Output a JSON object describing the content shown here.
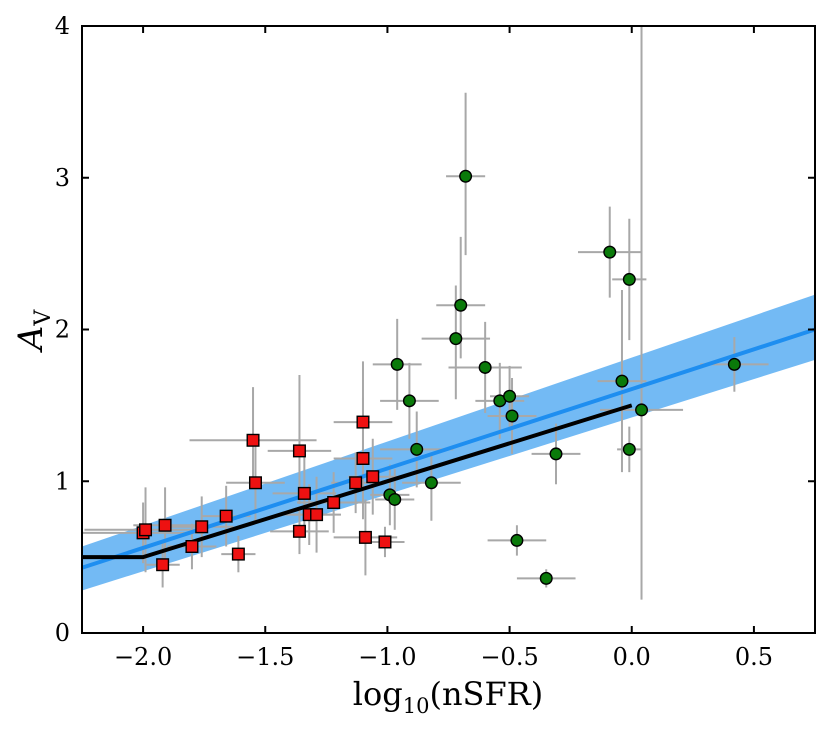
{
  "chart_data": {
    "type": "scatter",
    "title": "",
    "xlabel": "log10(nSFR)",
    "xlabel_main": "log",
    "xlabel_sub": "10",
    "xlabel_rest": "(nSFR)",
    "ylabel_main": "A",
    "ylabel_sub": "V",
    "xlim": [
      -2.25,
      0.75
    ],
    "ylim": [
      0,
      4
    ],
    "xticks": [
      -2.0,
      -1.5,
      -1.0,
      -0.5,
      0.0,
      0.5
    ],
    "xtick_labels": [
      "−2.0",
      "−1.5",
      "−1.0",
      "−0.5",
      "0.0",
      "0.5"
    ],
    "yticks": [
      0,
      1,
      2,
      3,
      4
    ],
    "ytick_labels": [
      "0",
      "1",
      "2",
      "3",
      "4"
    ],
    "grid": false,
    "colors": {
      "green_points": "#0a7a0a",
      "red_points": "#ee1111",
      "error_bars": "#a8a8a8",
      "fit_line": "#1e8ef0",
      "fit_band": "#5aaef2",
      "model_line": "#000000"
    },
    "series": [
      {
        "name": "green",
        "marker": "circle",
        "points": [
          {
            "x": -0.68,
            "y": 3.01,
            "xerr": 0.08,
            "yerr_lo": 0.52,
            "yerr_hi": 0.55
          },
          {
            "x": -0.7,
            "y": 2.16,
            "xerr": 0.1,
            "yerr_lo": 0.35,
            "yerr_hi": 0.45
          },
          {
            "x": -0.72,
            "y": 1.94,
            "xerr": 0.14,
            "yerr_lo": 0.4,
            "yerr_hi": 0.35
          },
          {
            "x": -0.96,
            "y": 1.77,
            "xerr": 0.1,
            "yerr_lo": 0.3,
            "yerr_hi": 0.3
          },
          {
            "x": -0.6,
            "y": 1.75,
            "xerr": 0.15,
            "yerr_lo": 0.3,
            "yerr_hi": 0.3
          },
          {
            "x": -0.91,
            "y": 1.53,
            "xerr": 0.12,
            "yerr_lo": 0.25,
            "yerr_hi": 0.25
          },
          {
            "x": -0.54,
            "y": 1.53,
            "xerr": 0.1,
            "yerr_lo": 0.25,
            "yerr_hi": 0.25
          },
          {
            "x": -0.5,
            "y": 1.56,
            "xerr": 0.08,
            "yerr_lo": 0.2,
            "yerr_hi": 0.2
          },
          {
            "x": -0.49,
            "y": 1.43,
            "xerr": 0.1,
            "yerr_lo": 0.25,
            "yerr_hi": 0.25
          },
          {
            "x": -0.88,
            "y": 1.21,
            "xerr": 0.15,
            "yerr_lo": 0.25,
            "yerr_hi": 0.25
          },
          {
            "x": -0.82,
            "y": 0.99,
            "xerr": 0.12,
            "yerr_lo": 0.25,
            "yerr_hi": 0.2
          },
          {
            "x": -0.99,
            "y": 0.91,
            "xerr": 0.08,
            "yerr_lo": 0.2,
            "yerr_hi": 0.2
          },
          {
            "x": -0.97,
            "y": 0.88,
            "xerr": 0.08,
            "yerr_lo": 0.2,
            "yerr_hi": 0.2
          },
          {
            "x": -0.31,
            "y": 1.18,
            "xerr": 0.1,
            "yerr_lo": 0.2,
            "yerr_hi": 0.2
          },
          {
            "x": -0.47,
            "y": 0.61,
            "xerr": 0.12,
            "yerr_lo": 0.1,
            "yerr_hi": 0.1
          },
          {
            "x": -0.35,
            "y": 0.36,
            "xerr": 0.12,
            "yerr_lo": 0.06,
            "yerr_hi": 0.06
          },
          {
            "x": -0.09,
            "y": 2.51,
            "xerr": 0.13,
            "yerr_lo": 0.3,
            "yerr_hi": 0.3
          },
          {
            "x": -0.01,
            "y": 2.33,
            "xerr": 0.07,
            "yerr_lo": 0.4,
            "yerr_hi": 0.4
          },
          {
            "x": -0.04,
            "y": 1.66,
            "xerr": 0.1,
            "yerr_lo": 0.6,
            "yerr_hi": 0.6
          },
          {
            "x": -0.01,
            "y": 1.21,
            "xerr": 0.05,
            "yerr_lo": 0.15,
            "yerr_hi": 0.15
          },
          {
            "x": 0.04,
            "y": 1.47,
            "xerr": 0.17,
            "yerr_lo": 1.25,
            "yerr_hi": 3.6
          },
          {
            "x": 0.42,
            "y": 1.77,
            "xerr": 0.14,
            "yerr_lo": 0.18,
            "yerr_hi": 0.18
          }
        ]
      },
      {
        "name": "red",
        "marker": "square",
        "points": [
          {
            "x": -2.0,
            "y": 0.66,
            "xerr": 0.25,
            "yerr_lo": 0.2,
            "yerr_hi": 0.2
          },
          {
            "x": -1.99,
            "y": 0.68,
            "xerr": 0.25,
            "yerr_lo": 0.28,
            "yerr_hi": 0.28
          },
          {
            "x": -1.91,
            "y": 0.71,
            "xerr": 0.13,
            "yerr_lo": 0.25,
            "yerr_hi": 0.25
          },
          {
            "x": -1.92,
            "y": 0.45,
            "xerr": 0.07,
            "yerr_lo": 0.15,
            "yerr_hi": 0.15
          },
          {
            "x": -1.76,
            "y": 0.7,
            "xerr": 0.13,
            "yerr_lo": 0.2,
            "yerr_hi": 0.2
          },
          {
            "x": -1.8,
            "y": 0.57,
            "xerr": 0.1,
            "yerr_lo": 0.15,
            "yerr_hi": 0.15
          },
          {
            "x": -1.66,
            "y": 0.77,
            "xerr": 0.1,
            "yerr_lo": 0.2,
            "yerr_hi": 0.2
          },
          {
            "x": -1.61,
            "y": 0.52,
            "xerr": 0.07,
            "yerr_lo": 0.12,
            "yerr_hi": 0.12
          },
          {
            "x": -1.55,
            "y": 1.27,
            "xerr": 0.26,
            "yerr_lo": 0.3,
            "yerr_hi": 0.35
          },
          {
            "x": -1.54,
            "y": 0.99,
            "xerr": 0.12,
            "yerr_lo": 0.25,
            "yerr_hi": 0.25
          },
          {
            "x": -1.36,
            "y": 1.2,
            "xerr": 0.13,
            "yerr_lo": 0.35,
            "yerr_hi": 0.5
          },
          {
            "x": -1.34,
            "y": 0.92,
            "xerr": 0.13,
            "yerr_lo": 0.25,
            "yerr_hi": 0.25
          },
          {
            "x": -1.32,
            "y": 0.78,
            "xerr": 0.1,
            "yerr_lo": 0.2,
            "yerr_hi": 0.2
          },
          {
            "x": -1.29,
            "y": 0.78,
            "xerr": 0.1,
            "yerr_lo": 0.25,
            "yerr_hi": 0.25
          },
          {
            "x": -1.36,
            "y": 0.67,
            "xerr": 0.12,
            "yerr_lo": 0.15,
            "yerr_hi": 0.15
          },
          {
            "x": -1.22,
            "y": 0.86,
            "xerr": 0.15,
            "yerr_lo": 0.2,
            "yerr_hi": 0.2
          },
          {
            "x": -1.13,
            "y": 0.99,
            "xerr": 0.1,
            "yerr_lo": 0.2,
            "yerr_hi": 0.2
          },
          {
            "x": -1.06,
            "y": 1.03,
            "xerr": 0.1,
            "yerr_lo": 0.25,
            "yerr_hi": 0.25
          },
          {
            "x": -1.1,
            "y": 1.39,
            "xerr": 0.12,
            "yerr_lo": 0.4,
            "yerr_hi": 0.4
          },
          {
            "x": -1.1,
            "y": 1.15,
            "xerr": 0.12,
            "yerr_lo": 0.4,
            "yerr_hi": 0.4
          },
          {
            "x": -1.09,
            "y": 0.63,
            "xerr": 0.13,
            "yerr_lo": 0.25,
            "yerr_hi": 0.25
          },
          {
            "x": -1.01,
            "y": 0.6,
            "xerr": 0.08,
            "yerr_lo": 0.1,
            "yerr_hi": 0.1
          }
        ]
      }
    ],
    "fit_line": {
      "x": [
        -2.25,
        0.75
      ],
      "y": [
        0.43,
        2.0
      ],
      "band_upper": [
        0.57,
        2.23
      ],
      "band_lower": [
        0.28,
        1.8
      ]
    },
    "model_line": {
      "x": [
        -2.25,
        -2.0,
        0.0
      ],
      "y": [
        0.5,
        0.5,
        1.5
      ]
    }
  }
}
